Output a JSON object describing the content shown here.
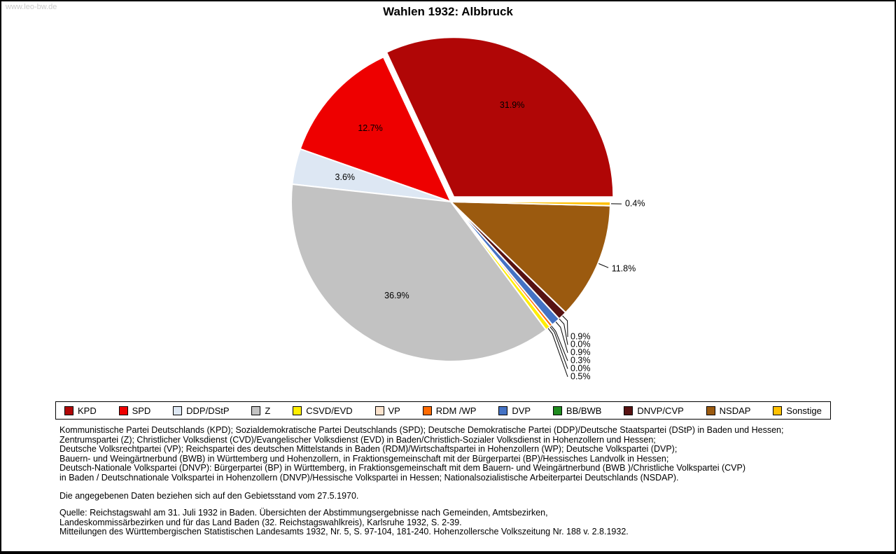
{
  "watermark": "www.leo-bw.de",
  "title": "Wahlen 1932: Albbruck",
  "chart_data": {
    "type": "pie",
    "title": "Wahlen 1932: Albbruck",
    "start_angle_deg": 0,
    "direction": "counterclockwise",
    "legend_position": "bottom",
    "slices": [
      {
        "label": "KPD",
        "value": 31.9,
        "display": "31.9%",
        "color": "#b00606",
        "label_layout": "inside",
        "exploded": true
      },
      {
        "label": "SPD",
        "value": 12.7,
        "display": "12.7%",
        "color": "#ee0000",
        "label_layout": "inside"
      },
      {
        "label": "DDP/DStP",
        "value": 3.6,
        "display": "3.6%",
        "color": "#dde7f3",
        "label_layout": "inside"
      },
      {
        "label": "Z",
        "value": 36.9,
        "display": "36.9%",
        "color": "#c2c2c2",
        "label_layout": "inside"
      },
      {
        "label": "CSVD/EVD",
        "value": 0.5,
        "display": "0.5%",
        "color": "#ffee00",
        "label_layout": "stack"
      },
      {
        "label": "VP",
        "value": 0.0,
        "display": "0.0%",
        "color": "#fbe3cd",
        "label_layout": "stack"
      },
      {
        "label": "RDM /WP",
        "value": 0.3,
        "display": "0.3%",
        "color": "#ff6a00",
        "label_layout": "stack"
      },
      {
        "label": "DVP",
        "value": 0.9,
        "display": "0.9%",
        "color": "#4472c4",
        "label_layout": "stack"
      },
      {
        "label": "BB/BWB",
        "value": 0.0,
        "display": "0.0%",
        "color": "#1e8a1e",
        "label_layout": "stack"
      },
      {
        "label": "DNVP/CVP",
        "value": 0.9,
        "display": "0.9%",
        "color": "#571212",
        "label_layout": "stack"
      },
      {
        "label": "NSDAP",
        "value": 11.8,
        "display": "11.8%",
        "color": "#9b5a0f",
        "label_layout": "outside"
      },
      {
        "label": "Sonstige",
        "value": 0.4,
        "display": "0.4%",
        "color": "#ffc000",
        "label_layout": "outside"
      }
    ]
  },
  "footnotes": {
    "party_lines": [
      "Kommunistische Partei Deutschlands (KPD); Sozialdemokratische Partei Deutschlands (SPD); Deutsche Demokratische Partei (DDP)/Deutsche Staatspartei (DStP) in Baden und Hessen;",
      "Zentrumspartei (Z); Christlicher Volksdienst (CVD)/Evangelischer Volksdienst (EVD) in Baden/Christlich-Sozialer Volksdienst in Hohenzollern und Hessen;",
      "Deutsche Volksrechtpartei (VP); Reichspartei des deutschen Mittelstands in Baden (RDM)/Wirtschaftspartei in Hohenzollern (WP); Deutsche Volkspartei (DVP);",
      "Bauern- und Weingärtnerbund (BWB) in Württemberg und Hohenzollern, in Fraktionsgemeinschaft mit der Bürgerpartei (BP)/Hessisches Landvolk in Hessen;",
      "Deutsch-Nationale Volkspartei (DNVP): Bürgerpartei (BP) in Württemberg, in Fraktionsgemeinschaft mit dem Bauern- und Weingärtnerbund (BWB )/Christliche Volkspartei (CVP)",
      "in Baden / Deutschnationale Volkspartei in Hohenzollern (DNVP)/Hessische Volkspartei in Hessen; Nationalsozialistische Arbeiterpartei Deutschlands (NSDAP)."
    ],
    "territorial_note": "Die angegebenen Daten beziehen sich auf den Gebietsstand vom 27.5.1970.",
    "source_lines": [
      "Quelle: Reichstagswahl am 31. Juli 1932 in Baden. Übersichten der Abstimmungsergebnisse nach Gemeinden, Amtsbezirken,",
      "Landeskommissärbezirken und für das Land Baden (32. Reichstagswahlkreis), Karlsruhe 1932, S. 2-39.",
      "Mitteilungen des Württembergischen Statistischen Landesamts 1932, Nr. 5, S. 97-104, 181-240. Hohenzollersche Volkszeitung Nr. 188 v. 2.8.1932."
    ]
  }
}
